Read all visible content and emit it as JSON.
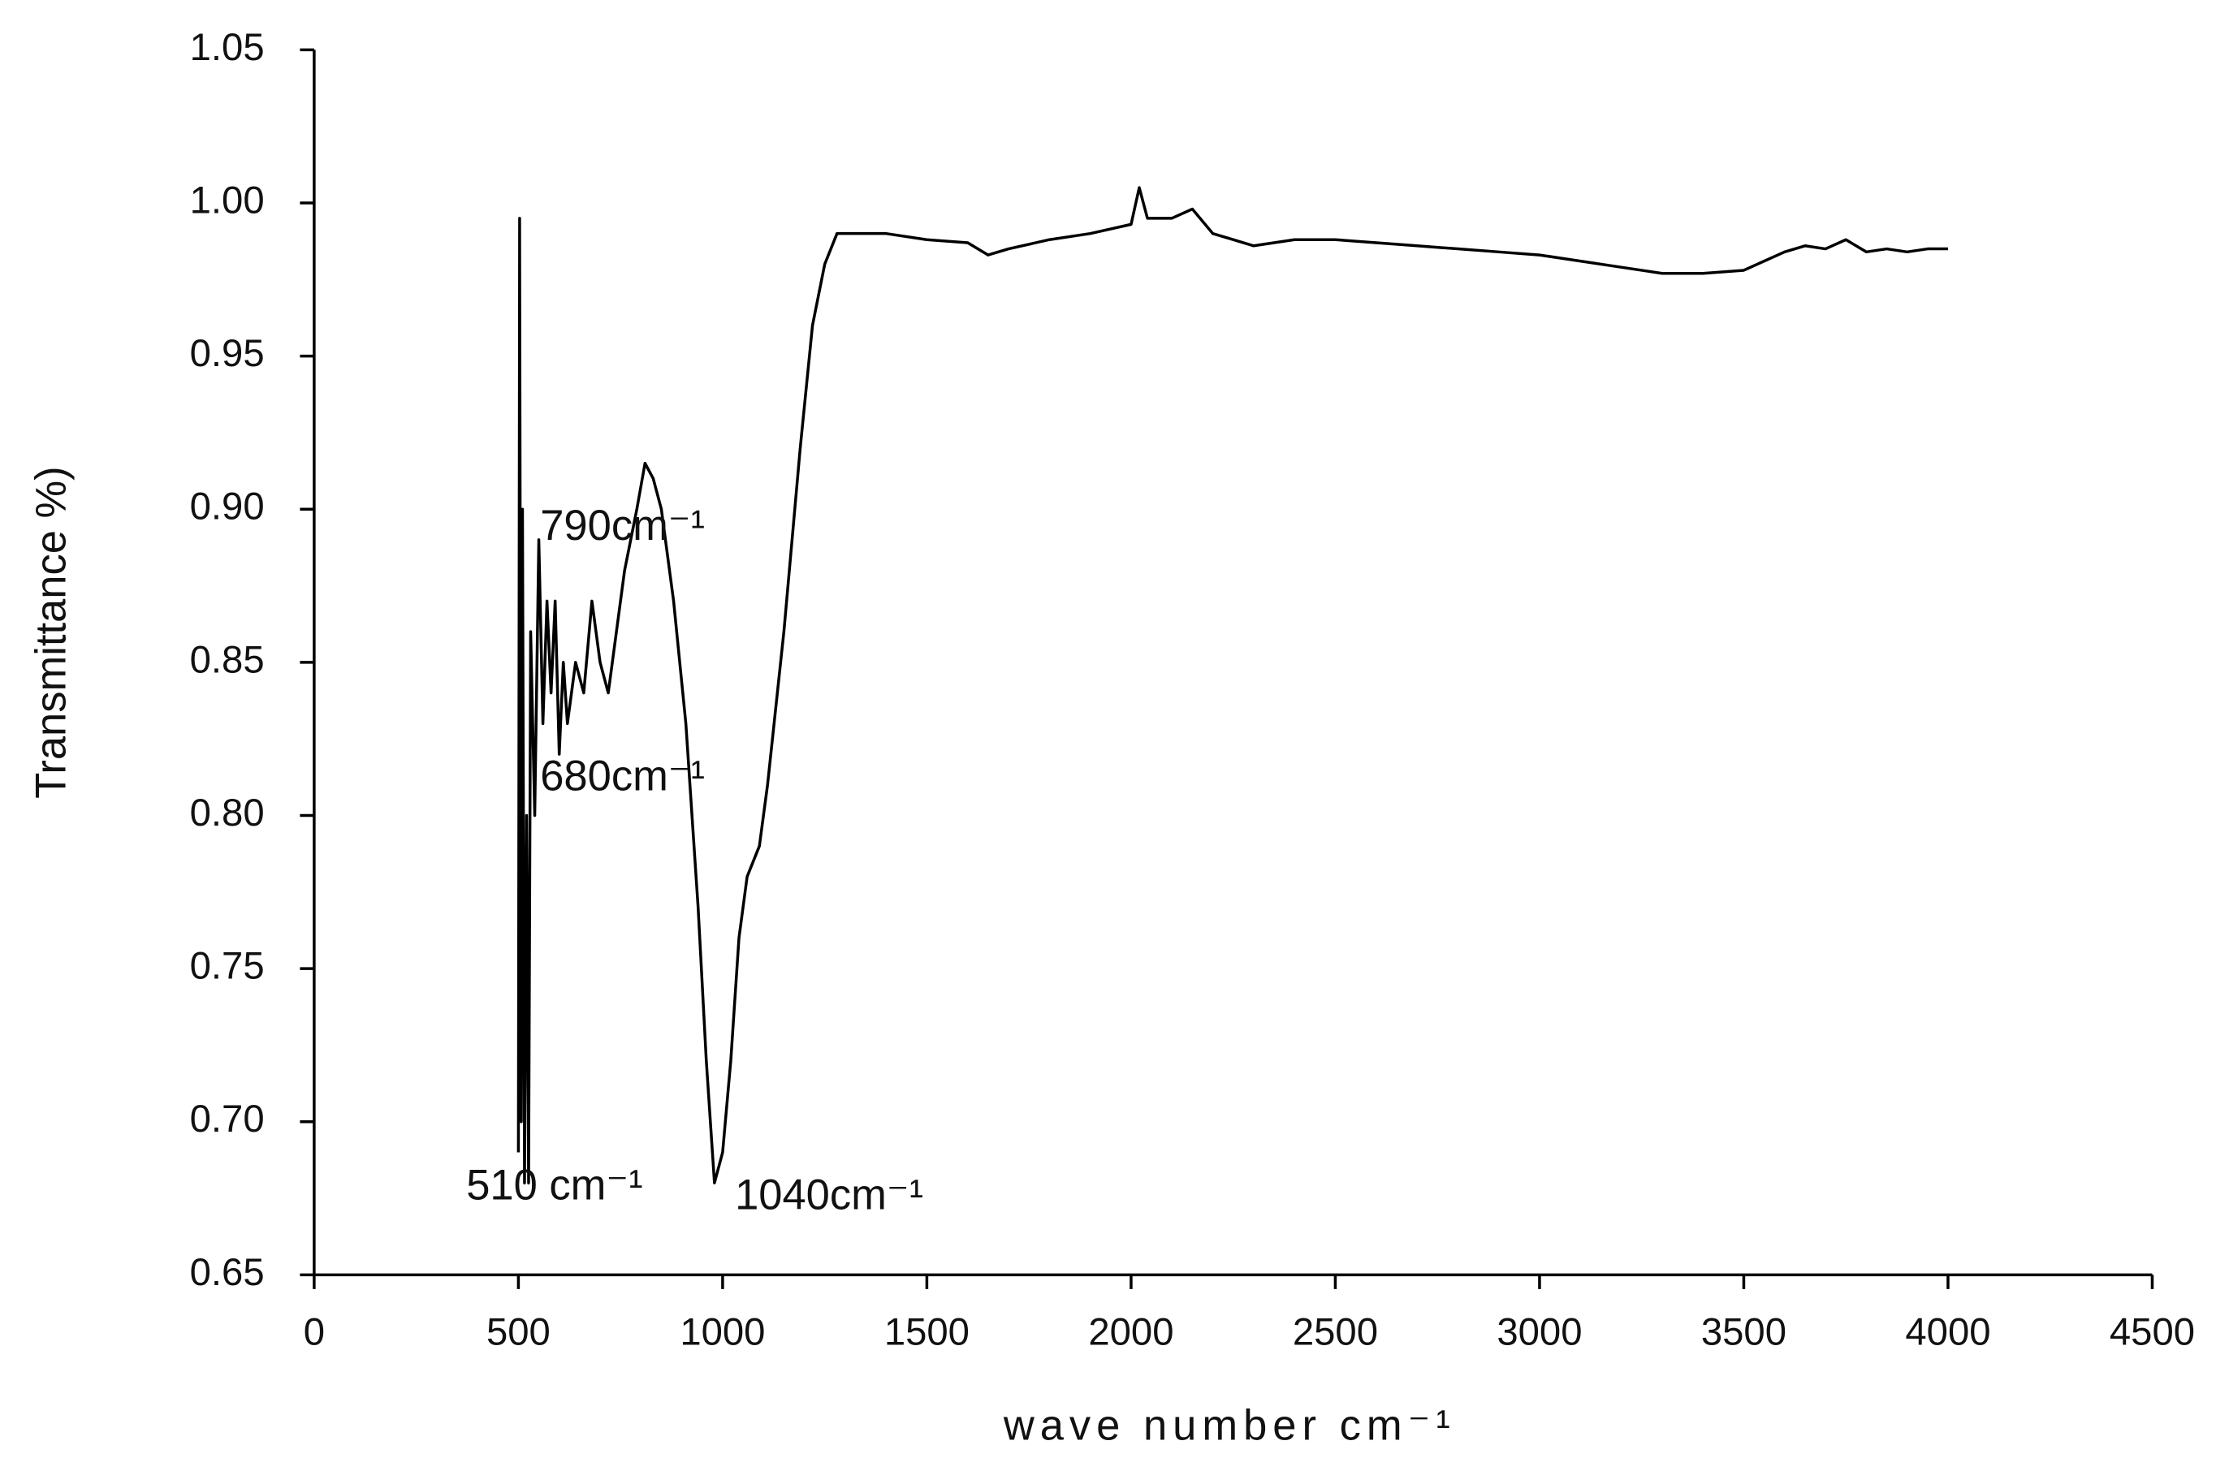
{
  "chart_data": {
    "type": "line",
    "xlabel": "wave number  cm⁻¹",
    "ylabel": "Transmittance %)",
    "annotations": [
      "790cm⁻¹",
      "680cm⁻¹",
      "510 cm⁻¹",
      "1040cm⁻¹"
    ],
    "xlim": [
      0,
      4500
    ],
    "xticks": [
      0,
      500,
      1000,
      1500,
      2000,
      2500,
      3000,
      3500,
      4000,
      4500
    ],
    "ylim": [
      0.65,
      1.05
    ],
    "yticks": [
      0.65,
      {
        "value": 0.7,
        "label": "0.70"
      },
      0.75,
      {
        "value": 0.8,
        "label": "0.80"
      },
      0.85,
      {
        "value": 0.9,
        "label": "0.90"
      },
      0.95,
      {
        "value": 1.0,
        "label": "1.00"
      },
      1.05
    ],
    "grid": false,
    "series": [
      {
        "color": "#000000",
        "x": [
          500,
          503,
          507,
          510,
          515,
          520,
          525,
          530,
          540,
          550,
          560,
          570,
          580,
          590,
          600,
          610,
          620,
          640,
          660,
          680,
          700,
          720,
          740,
          760,
          790,
          810,
          830,
          850,
          880,
          910,
          940,
          960,
          980,
          1000,
          1020,
          1040,
          1060,
          1090,
          1110,
          1150,
          1190,
          1220,
          1250,
          1280,
          1300,
          1400,
          1500,
          1600,
          1650,
          1700,
          1800,
          1900,
          2000,
          2020,
          2040,
          2100,
          2150,
          2200,
          2250,
          2300,
          2400,
          2500,
          2600,
          2700,
          2800,
          2900,
          3000,
          3100,
          3200,
          3300,
          3400,
          3500,
          3550,
          3600,
          3650,
          3700,
          3750,
          3800,
          3850,
          3900,
          3950,
          4000
        ],
        "values": [
          0.69,
          0.995,
          0.7,
          0.9,
          0.68,
          0.8,
          0.68,
          0.86,
          0.8,
          0.89,
          0.83,
          0.87,
          0.84,
          0.87,
          0.82,
          0.85,
          0.83,
          0.85,
          0.84,
          0.87,
          0.85,
          0.84,
          0.86,
          0.88,
          0.9,
          0.915,
          0.91,
          0.9,
          0.87,
          0.83,
          0.77,
          0.72,
          0.68,
          0.69,
          0.72,
          0.76,
          0.78,
          0.79,
          0.81,
          0.86,
          0.92,
          0.96,
          0.98,
          0.99,
          0.99,
          0.99,
          0.988,
          0.987,
          0.983,
          0.985,
          0.988,
          0.99,
          0.993,
          1.005,
          0.995,
          0.995,
          0.998,
          0.99,
          0.988,
          0.986,
          0.988,
          0.988,
          0.987,
          0.986,
          0.985,
          0.984,
          0.983,
          0.981,
          0.979,
          0.977,
          0.977,
          0.978,
          0.981,
          0.984,
          0.986,
          0.985,
          0.988,
          0.984,
          0.985,
          0.984,
          0.985,
          0.985
        ]
      }
    ]
  }
}
